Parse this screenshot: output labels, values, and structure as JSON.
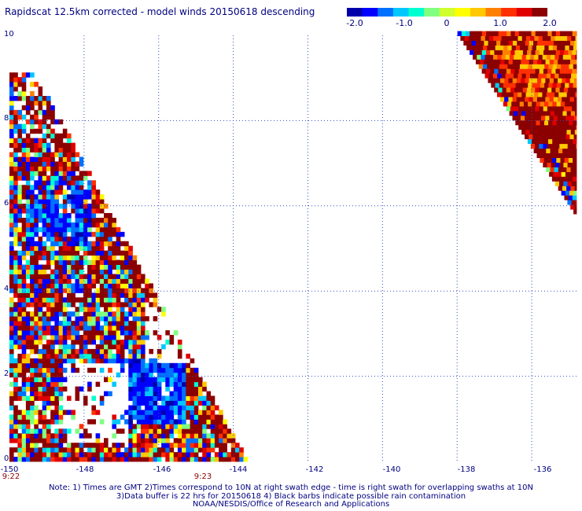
{
  "title": "Rapidscat 12.5km corrected - model winds 20150618 descending",
  "colorbar": {
    "ticks": [
      "-2.0",
      "-1.0",
      "0",
      "1.0",
      "2.0"
    ],
    "min": -2.0,
    "max": 2.0,
    "colors": [
      "#0000aa",
      "#0000ff",
      "#0070ff",
      "#00c8ff",
      "#00ffd0",
      "#80ff80",
      "#d0ff30",
      "#ffff00",
      "#ffc800",
      "#ff8000",
      "#ff3000",
      "#e00000",
      "#8b0000"
    ]
  },
  "map_data": {
    "lon_range": [
      -150,
      -134.8
    ],
    "lat_range": [
      0,
      10
    ],
    "x_ticks": [
      "-150",
      "-148",
      "-146",
      "-144",
      "-142",
      "-140",
      "-138",
      "-136"
    ],
    "y_ticks": [
      "0",
      "2",
      "4",
      "6",
      "8",
      "10"
    ],
    "time_labels": [
      {
        "lon": -150,
        "text": "9:22"
      },
      {
        "lon": -144.5,
        "text": "9:23"
      }
    ],
    "swaths": [
      {
        "name": "left",
        "lon_west": -150,
        "lat_top": 9.1,
        "lon_east_at_bottom": -143.7,
        "lon_east_at_top": -149.4
      },
      {
        "name": "right",
        "lat_top": 10,
        "lat_bottom": 5.7,
        "lon_west_at_top": -138.0,
        "lon_west_at_bottom": -134.8
      }
    ]
  },
  "notes": [
    "Note: 1) Times are GMT 2)Times correspond to 10N at right swath edge - time is right swath for overlapping swaths at 10N",
    "3)Data buffer is 22 hrs for 20150618 4) Black barbs indicate possible rain contamination",
    "NOAA/NESDIS/Office of Research and Applications"
  ]
}
